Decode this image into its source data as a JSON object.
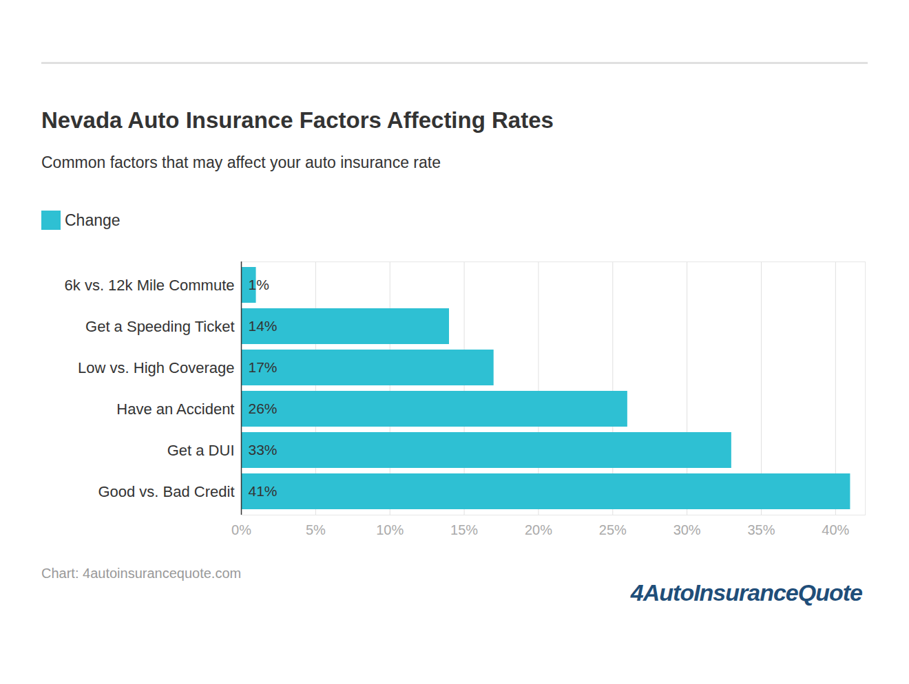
{
  "chart_data": {
    "type": "bar",
    "orientation": "horizontal",
    "title": "Nevada Auto Insurance Factors Affecting Rates",
    "subtitle": "Common factors that may affect your auto insurance rate",
    "caption": "Chart: 4autoinsurancequote.com",
    "logo": "4AutoInsuranceQuote",
    "categories": [
      "6k vs. 12k Mile Commute",
      "Get a Speeding Ticket",
      "Low vs. High Coverage",
      "Have an Accident",
      "Get a DUI",
      "Good vs. Bad Credit"
    ],
    "series": [
      {
        "name": "Change",
        "color": "#2ec0d3",
        "values": [
          1,
          14,
          17,
          26,
          33,
          41
        ],
        "value_labels": [
          "1%",
          "14%",
          "17%",
          "26%",
          "33%",
          "41%"
        ]
      }
    ],
    "xlim": [
      0,
      42
    ],
    "xticks": [
      {
        "value": 0,
        "label": "0%"
      },
      {
        "value": 5,
        "label": "5%"
      },
      {
        "value": 10,
        "label": "10%"
      },
      {
        "value": 15,
        "label": "15%"
      },
      {
        "value": 20,
        "label": "20%"
      },
      {
        "value": 25,
        "label": "25%"
      },
      {
        "value": 30,
        "label": "30%"
      },
      {
        "value": 35,
        "label": "35%"
      },
      {
        "value": 40,
        "label": "40%"
      }
    ],
    "grid": true,
    "legend": "top-left",
    "data_labels": true
  }
}
